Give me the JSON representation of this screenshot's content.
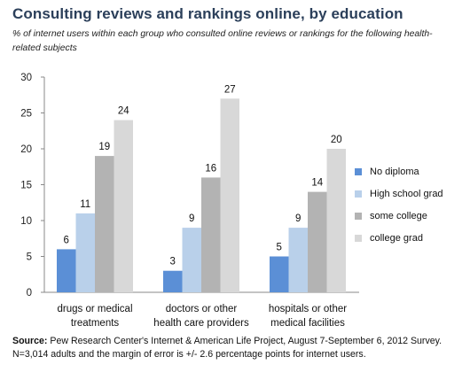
{
  "header": {
    "title": "Consulting reviews and rankings online, by education",
    "subtitle": "% of internet users within each group who consulted online reviews or rankings for the following health-related subjects"
  },
  "chart_data": {
    "type": "bar",
    "categories": [
      [
        "drugs or medical",
        "treatments"
      ],
      [
        "doctors or other",
        "health care providers"
      ],
      [
        "hospitals or other",
        "medical facilities"
      ]
    ],
    "series": [
      {
        "name": "No diploma",
        "values": [
          6,
          3,
          5
        ],
        "color": "#5b8fd6"
      },
      {
        "name": "High school grad",
        "values": [
          11,
          9,
          9
        ],
        "color": "#b9d0ea"
      },
      {
        "name": "some college",
        "values": [
          19,
          16,
          14
        ],
        "color": "#b3b3b3"
      },
      {
        "name": "college grad",
        "values": [
          24,
          27,
          20
        ],
        "color": "#d8d8d8"
      }
    ],
    "ylim": [
      0,
      30
    ],
    "yticks": [
      0,
      5,
      10,
      15,
      20,
      25,
      30
    ],
    "grid": false,
    "legend": "right"
  },
  "footer": {
    "source_label": "Source:",
    "source_text": "Pew Research Center's Internet & American Life Project, August 7-September 6, 2012 Survey. N=3,014 adults and the margin of error is +/- 2.6 percentage points for internet users."
  }
}
